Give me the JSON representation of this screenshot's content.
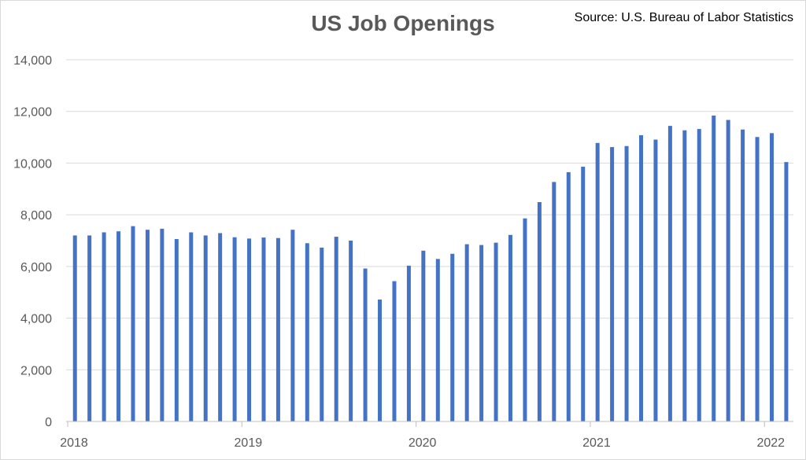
{
  "chart_data": {
    "type": "bar",
    "title": "US Job Openings",
    "source": "Source: U.S. Bureau of Labor Statistics",
    "xlabel": "",
    "ylabel": "",
    "ylim": [
      0,
      14000
    ],
    "y_ticks": [
      0,
      2000,
      4000,
      6000,
      8000,
      10000,
      12000,
      14000
    ],
    "y_tick_labels": [
      "0",
      "2,000",
      "4,000",
      "6,000",
      "8,000",
      "10,000",
      "12,000",
      "14,000"
    ],
    "x_tick_labels": [
      "2018",
      "2019",
      "2020",
      "2021",
      "2022"
    ],
    "grid": true,
    "legend": "none",
    "bar_color": "#4472C4",
    "series": [
      {
        "values": [
          7200,
          7200,
          7320,
          7360,
          7560,
          7420,
          7460,
          7060,
          7320,
          7200,
          7290,
          7130,
          7080,
          7120,
          7100,
          7420,
          6900,
          6730,
          7150,
          7000,
          5920,
          4720,
          5430,
          6030,
          6610,
          6290,
          6490,
          6860,
          6830,
          6920,
          7220,
          7860,
          8490,
          9270,
          9650,
          9860,
          10780,
          10620,
          10660,
          11080,
          10910,
          11440,
          11270,
          11320,
          11840,
          11670,
          11300,
          11010,
          11160,
          10040
        ]
      }
    ],
    "months": [
      "2018-01",
      "2018-02",
      "2018-03",
      "2018-04",
      "2018-05",
      "2018-06",
      "2018-07",
      "2018-08",
      "2018-09",
      "2018-10",
      "2018-11",
      "2018-12",
      "2019-01",
      "2019-02",
      "2019-03",
      "2019-04",
      "2019-05",
      "2019-06",
      "2019-07",
      "2019-08",
      "2019-09",
      "2019-10",
      "2019-11",
      "2019-12",
      "2020-01",
      "2020-02",
      "2020-03",
      "2020-04",
      "2020-05",
      "2020-06",
      "2020-07",
      "2020-08",
      "2020-09",
      "2020-10",
      "2020-11",
      "2020-12",
      "2021-01",
      "2021-02",
      "2021-03",
      "2021-04",
      "2021-05",
      "2021-06",
      "2021-07",
      "2021-08",
      "2021-09",
      "2021-10",
      "2021-11",
      "2021-12",
      "2022-01",
      "2022-02"
    ]
  }
}
